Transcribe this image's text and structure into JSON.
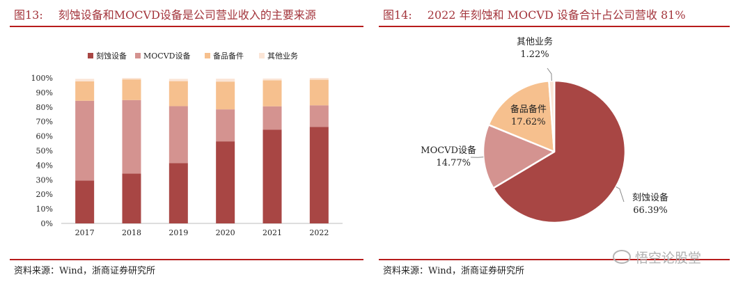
{
  "left": {
    "fig_num": "图13:",
    "title": "刻蚀设备和MOCVD设备是公司营业收入的主要来源",
    "source": "资料来源：Wind，浙商证券研究所"
  },
  "right": {
    "fig_num": "图14:",
    "title": "2022 年刻蚀和 MOCVD 设备合计占公司营收 81%",
    "source": "资料来源：Wind，浙商证券研究所"
  },
  "watermark": "悟空论股堂",
  "colors": {
    "etch": "#a84644",
    "mocvd": "#d49390",
    "spare": "#f6c08e",
    "other": "#fbe5d6",
    "title_red": "#a3343b",
    "rule": "#b71c1c"
  },
  "chart_data": [
    {
      "type": "bar",
      "stacked": true,
      "categories": [
        "2017",
        "2018",
        "2019",
        "2020",
        "2021",
        "2022"
      ],
      "series": [
        {
          "name": "刻蚀设备",
          "color": "#a84644",
          "values": [
            29.5,
            34.2,
            41.4,
            56.4,
            64.5,
            66.39
          ]
        },
        {
          "name": "MOCVD设备",
          "color": "#d49390",
          "values": [
            54.8,
            50.6,
            39.2,
            22.0,
            16.0,
            14.77
          ]
        },
        {
          "name": "备品备件",
          "color": "#f6c08e",
          "values": [
            13.4,
            14.2,
            17.2,
            19.1,
            17.9,
            17.62
          ]
        },
        {
          "name": "其他业务",
          "color": "#fbe5d6",
          "values": [
            1.7,
            1.0,
            1.6,
            2.0,
            1.2,
            1.22
          ]
        }
      ],
      "ylim": [
        0,
        100
      ],
      "yticks": [
        "0%",
        "10%",
        "20%",
        "30%",
        "40%",
        "50%",
        "60%",
        "70%",
        "80%",
        "90%",
        "100%"
      ],
      "legend_position": "top",
      "grid": false
    },
    {
      "type": "pie",
      "slices": [
        {
          "name": "刻蚀设备",
          "value": 66.39,
          "label": "66.39%",
          "color": "#a84644"
        },
        {
          "name": "MOCVD设备",
          "value": 14.77,
          "label": "14.77%",
          "color": "#d49390"
        },
        {
          "name": "备品备件",
          "value": 17.62,
          "label": "17.62%",
          "color": "#f6c08e"
        },
        {
          "name": "其他业务",
          "value": 1.22,
          "label": "1.22%",
          "color": "#fbe5d6"
        }
      ]
    }
  ]
}
